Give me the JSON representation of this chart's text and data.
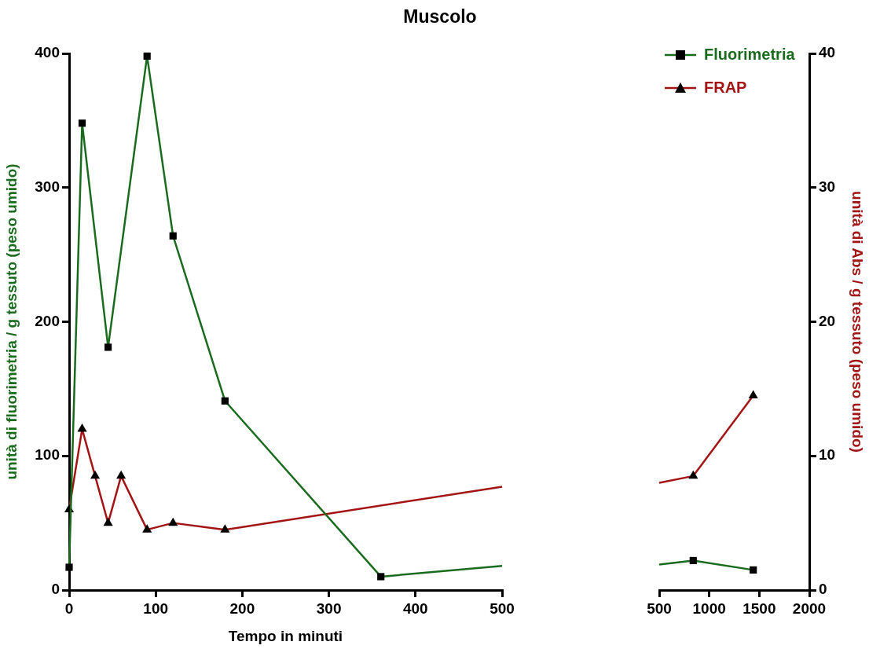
{
  "chart_data": [
    {
      "type": "line",
      "title": "Muscolo",
      "xlabel": "Tempo in minuti",
      "ylabel": "unità di fluorimetria / g tessuto (peso umido)",
      "xlim": [
        0,
        500
      ],
      "xticks": [
        0,
        100,
        200,
        300,
        400,
        500
      ],
      "ylim": [
        0,
        400
      ],
      "yticks": [
        0,
        100,
        200,
        300,
        400
      ],
      "y2lim": [
        0,
        40
      ],
      "series": [
        {
          "color": "#1b6b1f",
          "marker": "square",
          "x": [
            0,
            15,
            45,
            90,
            120,
            180,
            360
          ],
          "values": [
            17,
            348,
            181,
            398,
            264,
            141,
            10
          ]
        },
        {
          "color": "#1b6b1f",
          "marker": "none",
          "x": [
            360,
            500
          ],
          "values": [
            10,
            18
          ]
        },
        {
          "color": "#a31515",
          "marker": "triangle",
          "axis": "y2",
          "x": [
            0,
            15,
            30,
            45,
            60,
            90,
            120,
            180
          ],
          "values": [
            6,
            12,
            8.5,
            5,
            8.5,
            4.5,
            5,
            4.5
          ]
        },
        {
          "color": "#a31515",
          "marker": "none",
          "axis": "y2",
          "x": [
            180,
            500
          ],
          "values": [
            4.5,
            7.7
          ]
        }
      ]
    },
    {
      "type": "line",
      "y2label": "unità di Abs / g tessuto (peso umido)",
      "legend": "top left",
      "xlim": [
        500,
        2000
      ],
      "xticks": [
        500,
        1000,
        1500,
        2000
      ],
      "ylim": [
        0,
        400
      ],
      "y2lim": [
        0,
        40
      ],
      "y2ticks": [
        0,
        10,
        20,
        30,
        40
      ],
      "series": [
        {
          "name": "Fluorimetria",
          "color": "#1b6b1f",
          "marker": "square",
          "x": [
            840,
            1440
          ],
          "values": [
            22,
            15
          ]
        },
        {
          "color": "#1b6b1f",
          "marker": "none",
          "x": [
            500,
            840
          ],
          "values": [
            19,
            22
          ]
        },
        {
          "name": "FRAP",
          "color": "#a31515",
          "marker": "triangle",
          "axis": "y2",
          "x": [
            840,
            1440
          ],
          "values": [
            8.5,
            14.5
          ]
        },
        {
          "color": "#a31515",
          "marker": "none",
          "axis": "y2",
          "x": [
            500,
            840
          ],
          "values": [
            8,
            8.5
          ]
        }
      ]
    }
  ]
}
